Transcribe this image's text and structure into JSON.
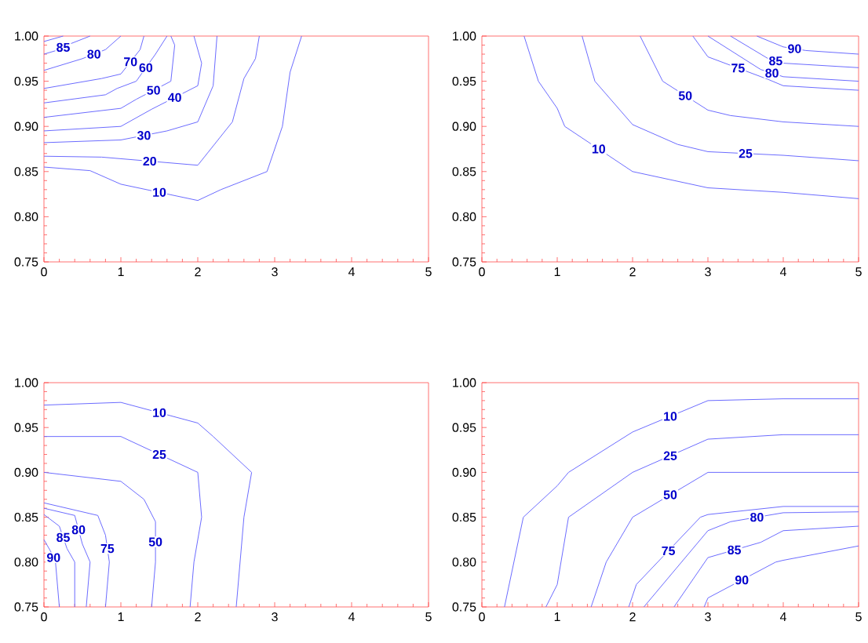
{
  "chart_data": [
    {
      "type": "line",
      "xlim": [
        0,
        5
      ],
      "ylim": [
        0.75,
        1.0
      ],
      "xticks": [
        0,
        1,
        2,
        3,
        4,
        5
      ],
      "yticks": [
        {
          "value": 0.75,
          "label": "0.75"
        },
        {
          "value": 0.8,
          "label": "0.80"
        },
        {
          "value": 0.85,
          "label": "0.85"
        },
        {
          "value": 0.9,
          "label": "0.90"
        },
        {
          "value": 0.95,
          "label": "0.95"
        },
        {
          "value": 1.0,
          "label": "1.00"
        }
      ],
      "series": [
        {
          "color": "#6b6bff",
          "x": [
            0,
            0.25
          ],
          "values": [
            0.994,
            1.0
          ]
        },
        {
          "name": "85",
          "color": "#6b6bff",
          "x": [
            0,
            0.2,
            0.3,
            0.6
          ],
          "values": [
            0.98,
            0.985,
            0.99,
            1.0
          ]
        },
        {
          "name": "80",
          "color": "#6b6bff",
          "x": [
            0,
            0.5,
            0.8,
            1.0
          ],
          "values": [
            0.962,
            0.975,
            0.985,
            1.0
          ]
        },
        {
          "name": "70",
          "color": "#6b6bff",
          "x": [
            0,
            0.75,
            1.0,
            1.25,
            1.3
          ],
          "values": [
            0.942,
            0.953,
            0.958,
            0.985,
            1.0
          ]
        },
        {
          "name": "60",
          "color": "#6b6bff",
          "x": [
            0,
            0.8,
            0.95,
            1.2,
            1.45,
            1.6
          ],
          "values": [
            0.926,
            0.935,
            0.942,
            0.95,
            0.98,
            1.0
          ]
        },
        {
          "name": "50",
          "color": "#6b6bff",
          "x": [
            0,
            1.0,
            1.2,
            1.65,
            1.7,
            1.65
          ],
          "values": [
            0.91,
            0.92,
            0.93,
            0.95,
            0.99,
            1.0
          ]
        },
        {
          "name": "40",
          "color": "#6b6bff",
          "x": [
            0,
            1.0,
            1.4,
            2.0,
            2.05,
            1.95
          ],
          "values": [
            0.895,
            0.9,
            0.919,
            0.945,
            0.97,
            1.0
          ]
        },
        {
          "name": "30",
          "color": "#6b6bff",
          "x": [
            0,
            1.0,
            1.6,
            2.0,
            2.2,
            2.25
          ],
          "values": [
            0.882,
            0.885,
            0.895,
            0.905,
            0.945,
            1.0
          ]
        },
        {
          "name": "20",
          "color": "#6b6bff",
          "x": [
            0,
            0.75,
            2.0,
            2.45,
            2.6,
            2.75,
            2.8
          ],
          "values": [
            0.867,
            0.866,
            0.857,
            0.905,
            0.953,
            0.975,
            1.0
          ]
        },
        {
          "name": "10",
          "color": "#6b6bff",
          "x": [
            0,
            0.6,
            1.0,
            2.0,
            2.3,
            2.9,
            3.1,
            3.2,
            3.35
          ],
          "values": [
            0.855,
            0.851,
            0.836,
            0.818,
            0.83,
            0.85,
            0.9,
            0.96,
            1.0
          ]
        }
      ]
    },
    {
      "type": "line",
      "xlim": [
        0,
        5
      ],
      "ylim": [
        0.75,
        1.0
      ],
      "xticks": [
        0,
        1,
        2,
        3,
        4,
        5
      ],
      "yticks": [
        {
          "value": 0.75,
          "label": "0.75"
        },
        {
          "value": 0.8,
          "label": "0.80"
        },
        {
          "value": 0.85,
          "label": "0.85"
        },
        {
          "value": 0.9,
          "label": "0.90"
        },
        {
          "value": 0.95,
          "label": "0.95"
        },
        {
          "value": 1.0,
          "label": "1.00"
        }
      ],
      "series": [
        {
          "name": "10",
          "color": "#6b6bff",
          "x": [
            0.56,
            0.75,
            1.0,
            1.1,
            2.0,
            3.0,
            4.0,
            5.0
          ],
          "values": [
            1.0,
            0.95,
            0.92,
            0.9,
            0.85,
            0.832,
            0.827,
            0.82
          ]
        },
        {
          "name": "25",
          "color": "#6b6bff",
          "x": [
            1.33,
            1.5,
            2.0,
            2.6,
            3.0,
            4.0,
            5.0
          ],
          "values": [
            1.0,
            0.95,
            0.902,
            0.88,
            0.872,
            0.868,
            0.862
          ]
        },
        {
          "name": "50",
          "color": "#6b6bff",
          "x": [
            2.1,
            2.4,
            3.0,
            3.3,
            4.0,
            5.0
          ],
          "values": [
            1.0,
            0.95,
            0.918,
            0.912,
            0.905,
            0.9
          ]
        },
        {
          "name": "75",
          "color": "#6b6bff",
          "x": [
            2.8,
            3.0,
            3.8,
            4.0,
            5.0
          ],
          "values": [
            1.0,
            0.977,
            0.952,
            0.945,
            0.94
          ]
        },
        {
          "name": "80",
          "color": "#6b6bff",
          "x": [
            3.0,
            3.7,
            4.0,
            5.0
          ],
          "values": [
            1.0,
            0.963,
            0.955,
            0.95
          ]
        },
        {
          "name": "85",
          "color": "#6b6bff",
          "x": [
            3.3,
            3.8,
            4.0,
            5.0
          ],
          "values": [
            1.0,
            0.975,
            0.97,
            0.965
          ]
        },
        {
          "name": "90",
          "color": "#6b6bff",
          "x": [
            3.65,
            4.0,
            4.3,
            5.0
          ],
          "values": [
            1.0,
            0.988,
            0.984,
            0.98
          ]
        }
      ]
    },
    {
      "type": "line",
      "xlim": [
        0,
        5
      ],
      "ylim": [
        0.75,
        1.0
      ],
      "xticks": [
        0,
        1,
        2,
        3,
        4,
        5
      ],
      "yticks": [
        {
          "value": 0.75,
          "label": "0.75"
        },
        {
          "value": 0.8,
          "label": "0.80"
        },
        {
          "value": 0.85,
          "label": "0.85"
        },
        {
          "value": 0.9,
          "label": "0.90"
        },
        {
          "value": 0.95,
          "label": "0.95"
        },
        {
          "value": 1.0,
          "label": "1.00"
        }
      ],
      "series": [
        {
          "name": "10",
          "color": "#6b6bff",
          "x": [
            0,
            1.0,
            2.0,
            2.2,
            2.7,
            2.6,
            2.5
          ],
          "values": [
            0.975,
            0.978,
            0.955,
            0.94,
            0.9,
            0.85,
            0.75
          ]
        },
        {
          "name": "25",
          "color": "#6b6bff",
          "x": [
            0,
            0.2,
            1.0,
            2.0,
            2.05,
            1.95,
            1.9
          ],
          "values": [
            0.94,
            0.94,
            0.94,
            0.9,
            0.85,
            0.8,
            0.75
          ]
        },
        {
          "name": "50",
          "color": "#6b6bff",
          "x": [
            0,
            1.0,
            1.3,
            1.45,
            1.45,
            1.4
          ],
          "values": [
            0.9,
            0.89,
            0.87,
            0.845,
            0.8,
            0.75
          ]
        },
        {
          "name": "75",
          "color": "#6b6bff",
          "x": [
            0,
            0.7,
            0.8,
            0.85,
            0.8
          ],
          "values": [
            0.866,
            0.852,
            0.83,
            0.8,
            0.75
          ]
        },
        {
          "name": "80",
          "color": "#6b6bff",
          "x": [
            0,
            0.4,
            0.5,
            0.6,
            0.55
          ],
          "values": [
            0.86,
            0.852,
            0.82,
            0.8,
            0.75
          ]
        },
        {
          "name": "85",
          "color": "#6b6bff",
          "x": [
            0,
            0.2,
            0.3,
            0.4,
            0.4
          ],
          "values": [
            0.853,
            0.84,
            0.815,
            0.8,
            0.75
          ]
        },
        {
          "name": "90",
          "color": "#6b6bff",
          "x": [
            0,
            0.1,
            0.15,
            0.2
          ],
          "values": [
            0.825,
            0.81,
            0.8,
            0.75
          ]
        }
      ]
    },
    {
      "type": "line",
      "xlim": [
        0,
        5
      ],
      "ylim": [
        0.75,
        1.0
      ],
      "xticks": [
        0,
        1,
        2,
        3,
        4,
        5
      ],
      "yticks": [
        {
          "value": 0.75,
          "label": "0.75"
        },
        {
          "value": 0.8,
          "label": "0.80"
        },
        {
          "value": 0.85,
          "label": "0.85"
        },
        {
          "value": 0.9,
          "label": "0.90"
        },
        {
          "value": 0.95,
          "label": "0.95"
        },
        {
          "value": 1.0,
          "label": "1.00"
        }
      ],
      "series": [
        {
          "name": "10",
          "color": "#6b6bff",
          "x": [
            0.3,
            0.55,
            1.0,
            1.15,
            2.0,
            3.0,
            4.0,
            5.0
          ],
          "values": [
            0.75,
            0.85,
            0.885,
            0.9,
            0.945,
            0.98,
            0.982,
            0.982
          ]
        },
        {
          "name": "25",
          "color": "#6b6bff",
          "x": [
            0.85,
            1.0,
            1.15,
            2.0,
            3.0,
            4.0,
            5.0
          ],
          "values": [
            0.75,
            0.775,
            0.85,
            0.9,
            0.937,
            0.942,
            0.942
          ]
        },
        {
          "name": "50",
          "color": "#6b6bff",
          "x": [
            1.45,
            1.65,
            2.0,
            3.0,
            4.0,
            5.0
          ],
          "values": [
            0.75,
            0.8,
            0.85,
            0.9,
            0.9,
            0.9
          ]
        },
        {
          "name": "75",
          "color": "#6b6bff",
          "x": [
            1.95,
            2.05,
            2.9,
            3.0,
            4.0,
            5.0
          ],
          "values": [
            0.75,
            0.775,
            0.85,
            0.853,
            0.862,
            0.862
          ]
        },
        {
          "name": "80",
          "color": "#6b6bff",
          "x": [
            2.15,
            3.0,
            3.3,
            4.0,
            5.0
          ],
          "values": [
            0.75,
            0.835,
            0.845,
            0.855,
            0.856
          ]
        },
        {
          "name": "85",
          "color": "#6b6bff",
          "x": [
            2.55,
            3.0,
            3.7,
            4.0,
            5.0
          ],
          "values": [
            0.75,
            0.805,
            0.822,
            0.835,
            0.84
          ]
        },
        {
          "name": "90",
          "color": "#6b6bff",
          "x": [
            2.95,
            3.0,
            3.9,
            4.0,
            5.0
          ],
          "values": [
            0.75,
            0.76,
            0.8,
            0.802,
            0.818
          ]
        }
      ]
    }
  ]
}
